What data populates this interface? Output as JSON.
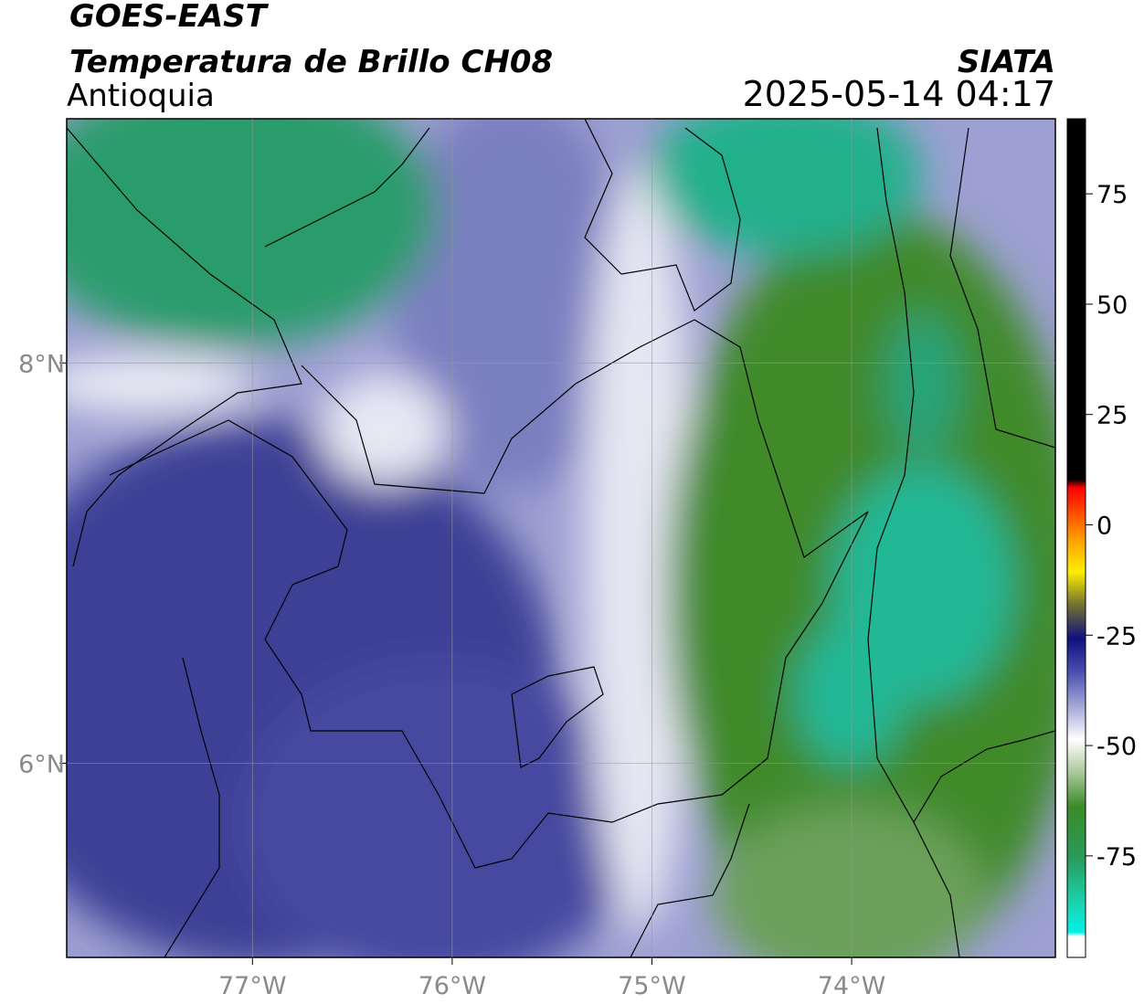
{
  "header": {
    "title": "GOES-EAST",
    "subtitle": "Temperatura de Brillo CH08",
    "region": "Antioquia",
    "agency": "SIATA",
    "datetime": "2025-05-14 04:17"
  },
  "map": {
    "xlim": [
      -77.93,
      -72.98
    ],
    "ylim": [
      5.03,
      9.22
    ],
    "xticks": [
      {
        "value": -77,
        "label": "77°W"
      },
      {
        "value": -76,
        "label": "76°W"
      },
      {
        "value": -75,
        "label": "75°W"
      },
      {
        "value": -74,
        "label": "74°W"
      }
    ],
    "yticks": [
      {
        "value": 6,
        "label": "6°N"
      },
      {
        "value": 8,
        "label": "8°N"
      }
    ]
  },
  "colorbar": {
    "lim": [
      -98,
      92
    ],
    "ticks": [
      75,
      50,
      25,
      0,
      -25,
      -50,
      -75
    ]
  }
}
